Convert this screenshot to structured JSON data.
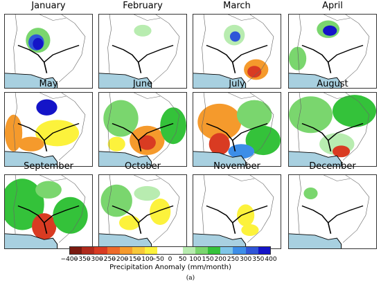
{
  "months": [
    "January",
    "February",
    "March",
    "April",
    "May",
    "June",
    "July",
    "August",
    "September",
    "October",
    "November",
    "December"
  ],
  "colorbar": {
    "ticks": [
      "−400",
      "−350",
      "−300",
      "−250",
      "−200",
      "−150",
      "−100",
      "−50",
      "0",
      "50",
      "100",
      "150",
      "200",
      "250",
      "300",
      "350",
      "400"
    ],
    "colors": [
      "#7a1a10",
      "#b02a1c",
      "#d93b22",
      "#ee6a2a",
      "#f59a2c",
      "#f8c83a",
      "#fcf23c",
      "#ffffff",
      "#ffffff",
      "#b8ecb0",
      "#7ad66e",
      "#34c23a",
      "#7fc6e8",
      "#3d8ee8",
      "#2f56d8",
      "#1414c8"
    ],
    "label": "Precipitation Anomaly (mm/month)"
  },
  "figure_label": "(a)",
  "palette": {
    "sea": "#a8d0e0"
  }
}
